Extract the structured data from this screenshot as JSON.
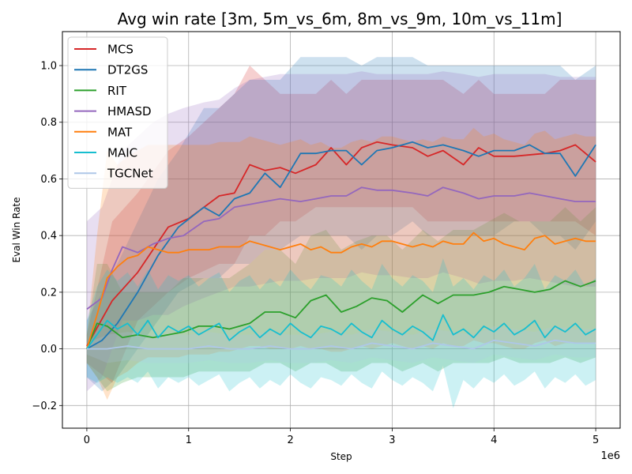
{
  "chart_data": {
    "type": "line",
    "title": "Avg win rate [3m, 5m_vs_6m, 8m_vs_9m, 10m_vs_11m]",
    "xlabel": "Step",
    "ylabel": "Eval Win Rate",
    "x_offset_label": "1e6",
    "xlim": [
      -240000,
      5240000
    ],
    "ylim": [
      -0.28,
      1.12
    ],
    "x_ticks": [
      0,
      1000000,
      2000000,
      3000000,
      4000000,
      5000000
    ],
    "x_tick_labels": [
      "0",
      "1",
      "2",
      "3",
      "4",
      "5"
    ],
    "y_ticks": [
      -0.2,
      0.0,
      0.2,
      0.4,
      0.6,
      0.8,
      1.0
    ],
    "y_tick_labels": [
      "−0.2",
      "0.0",
      "0.2",
      "0.4",
      "0.6",
      "0.8",
      "1.0"
    ],
    "grid": true,
    "legend_position": "top-left",
    "series": [
      {
        "name": "MCS",
        "color": "#d62728",
        "x": [
          0,
          250000,
          500000,
          800000,
          1000000,
          1300000,
          1450000,
          1600000,
          1750000,
          1900000,
          2050000,
          2250000,
          2400000,
          2550000,
          2700000,
          2850000,
          3000000,
          3200000,
          3350000,
          3500000,
          3700000,
          3850000,
          4000000,
          4200000,
          4500000,
          4650000,
          4800000,
          5000000
        ],
        "y": [
          0.01,
          0.17,
          0.27,
          0.43,
          0.46,
          0.54,
          0.55,
          0.65,
          0.63,
          0.64,
          0.62,
          0.65,
          0.71,
          0.65,
          0.71,
          0.73,
          0.72,
          0.71,
          0.68,
          0.7,
          0.65,
          0.71,
          0.68,
          0.68,
          0.69,
          0.7,
          0.72,
          0.66
        ],
        "band_lower": [
          -0.05,
          -0.12,
          0.1,
          0.2,
          0.25,
          0.3,
          0.3,
          0.4,
          0.4,
          0.45,
          0.45,
          0.5,
          0.5,
          0.5,
          0.5,
          0.5,
          0.5,
          0.5,
          0.45,
          0.45,
          0.45,
          0.45,
          0.45,
          0.45,
          0.45,
          0.45,
          0.45,
          0.4
        ],
        "band_upper": [
          0.05,
          0.45,
          0.55,
          0.7,
          0.75,
          0.85,
          0.9,
          1.0,
          0.95,
          0.9,
          0.9,
          0.9,
          0.95,
          0.9,
          0.95,
          0.95,
          0.95,
          0.95,
          0.95,
          0.95,
          0.9,
          0.95,
          0.9,
          0.9,
          0.9,
          0.95,
          0.95,
          0.95
        ]
      },
      {
        "name": "DT2GS",
        "color": "#1f77b4",
        "x": [
          0,
          150000,
          300000,
          500000,
          700000,
          900000,
          1150000,
          1300000,
          1450000,
          1600000,
          1750000,
          1900000,
          2100000,
          2250000,
          2400000,
          2550000,
          2700000,
          2850000,
          3000000,
          3200000,
          3350000,
          3500000,
          3700000,
          3850000,
          4000000,
          4200000,
          4350000,
          4500000,
          4650000,
          4800000,
          5000000
        ],
        "y": [
          0.0,
          0.03,
          0.09,
          0.2,
          0.33,
          0.43,
          0.5,
          0.47,
          0.53,
          0.55,
          0.62,
          0.57,
          0.69,
          0.69,
          0.7,
          0.7,
          0.65,
          0.7,
          0.71,
          0.73,
          0.71,
          0.72,
          0.7,
          0.68,
          0.7,
          0.7,
          0.72,
          0.69,
          0.69,
          0.61,
          0.72
        ],
        "band_lower": [
          -0.1,
          -0.15,
          -0.1,
          0.0,
          0.1,
          0.2,
          0.25,
          0.25,
          0.3,
          0.3,
          0.35,
          0.35,
          0.4,
          0.4,
          0.4,
          0.4,
          0.35,
          0.4,
          0.4,
          0.45,
          0.4,
          0.4,
          0.4,
          0.4,
          0.4,
          0.45,
          0.45,
          0.4,
          0.4,
          0.35,
          0.45
        ],
        "band_upper": [
          0.1,
          0.2,
          0.3,
          0.45,
          0.6,
          0.7,
          0.85,
          0.85,
          0.9,
          0.95,
          0.95,
          0.95,
          1.03,
          1.03,
          1.03,
          1.03,
          1.0,
          1.03,
          1.03,
          1.03,
          1.0,
          1.0,
          1.0,
          1.0,
          1.0,
          1.0,
          1.0,
          1.0,
          1.0,
          0.95,
          1.0
        ]
      },
      {
        "name": "RIT",
        "color": "#2ca02c",
        "x": [
          0,
          100000,
          200000,
          350000,
          500000,
          650000,
          800000,
          950000,
          1100000,
          1250000,
          1400000,
          1600000,
          1750000,
          1900000,
          2050000,
          2200000,
          2350000,
          2500000,
          2650000,
          2800000,
          2950000,
          3100000,
          3300000,
          3450000,
          3600000,
          3800000,
          3950000,
          4100000,
          4250000,
          4400000,
          4550000,
          4700000,
          4850000,
          5000000
        ],
        "y": [
          0.0,
          0.09,
          0.08,
          0.04,
          0.05,
          0.04,
          0.05,
          0.06,
          0.08,
          0.08,
          0.07,
          0.09,
          0.13,
          0.13,
          0.11,
          0.17,
          0.19,
          0.13,
          0.15,
          0.18,
          0.17,
          0.13,
          0.19,
          0.16,
          0.19,
          0.19,
          0.2,
          0.22,
          0.21,
          0.2,
          0.21,
          0.24,
          0.22,
          0.24
        ],
        "band_lower": [
          -0.05,
          -0.1,
          -0.15,
          -0.12,
          -0.1,
          -0.1,
          -0.1,
          -0.1,
          -0.08,
          -0.08,
          -0.08,
          -0.08,
          -0.05,
          -0.05,
          -0.08,
          -0.05,
          -0.05,
          -0.08,
          -0.08,
          -0.05,
          -0.05,
          -0.08,
          -0.05,
          -0.08,
          -0.05,
          -0.05,
          -0.05,
          -0.03,
          -0.05,
          -0.05,
          -0.05,
          -0.03,
          -0.05,
          -0.03
        ],
        "band_upper": [
          0.05,
          0.3,
          0.3,
          0.2,
          0.2,
          0.2,
          0.2,
          0.25,
          0.25,
          0.25,
          0.25,
          0.3,
          0.35,
          0.35,
          0.3,
          0.4,
          0.42,
          0.35,
          0.38,
          0.4,
          0.4,
          0.35,
          0.42,
          0.38,
          0.42,
          0.42,
          0.45,
          0.48,
          0.45,
          0.45,
          0.45,
          0.5,
          0.45,
          0.5
        ]
      },
      {
        "name": "HMASD",
        "color": "#9467bd",
        "x": [
          0,
          150000,
          250000,
          350000,
          500000,
          650000,
          800000,
          950000,
          1150000,
          1300000,
          1450000,
          1600000,
          1750000,
          1900000,
          2100000,
          2250000,
          2400000,
          2550000,
          2700000,
          2850000,
          3000000,
          3200000,
          3350000,
          3500000,
          3700000,
          3850000,
          4000000,
          4200000,
          4350000,
          4500000,
          4650000,
          4800000,
          5000000
        ],
        "y": [
          0.14,
          0.18,
          0.28,
          0.36,
          0.34,
          0.37,
          0.39,
          0.4,
          0.45,
          0.46,
          0.5,
          0.51,
          0.52,
          0.53,
          0.52,
          0.53,
          0.54,
          0.54,
          0.57,
          0.56,
          0.56,
          0.55,
          0.54,
          0.57,
          0.55,
          0.53,
          0.54,
          0.54,
          0.55,
          0.54,
          0.53,
          0.52,
          0.52
        ],
        "band_lower": [
          -0.15,
          -0.1,
          0.0,
          0.1,
          0.1,
          0.12,
          0.12,
          0.15,
          0.18,
          0.2,
          0.22,
          0.22,
          0.23,
          0.24,
          0.24,
          0.25,
          0.25,
          0.25,
          0.27,
          0.26,
          0.26,
          0.25,
          0.25,
          0.27,
          0.25,
          0.23,
          0.24,
          0.24,
          0.25,
          0.24,
          0.23,
          0.22,
          0.22
        ],
        "band_upper": [
          0.45,
          0.5,
          0.6,
          0.7,
          0.75,
          0.8,
          0.83,
          0.85,
          0.87,
          0.88,
          0.92,
          0.95,
          0.96,
          0.97,
          0.97,
          0.97,
          0.97,
          0.97,
          0.98,
          0.97,
          0.97,
          0.97,
          0.97,
          0.98,
          0.97,
          0.96,
          0.97,
          0.97,
          0.97,
          0.97,
          0.96,
          0.96,
          0.96
        ]
      },
      {
        "name": "MAT",
        "color": "#ff7f0e",
        "x": [
          0,
          100000,
          200000,
          300000,
          400000,
          500000,
          600000,
          700000,
          800000,
          900000,
          1000000,
          1100000,
          1200000,
          1300000,
          1400000,
          1500000,
          1600000,
          1700000,
          1800000,
          1900000,
          2000000,
          2100000,
          2200000,
          2300000,
          2400000,
          2500000,
          2600000,
          2700000,
          2800000,
          2900000,
          3000000,
          3100000,
          3200000,
          3300000,
          3400000,
          3500000,
          3600000,
          3700000,
          3800000,
          3900000,
          4000000,
          4100000,
          4200000,
          4300000,
          4400000,
          4500000,
          4600000,
          4700000,
          4800000,
          4900000,
          5000000
        ],
        "y": [
          0.0,
          0.12,
          0.25,
          0.29,
          0.32,
          0.33,
          0.36,
          0.35,
          0.34,
          0.34,
          0.35,
          0.35,
          0.35,
          0.36,
          0.36,
          0.36,
          0.38,
          0.37,
          0.36,
          0.35,
          0.36,
          0.37,
          0.35,
          0.36,
          0.34,
          0.34,
          0.36,
          0.37,
          0.36,
          0.38,
          0.38,
          0.37,
          0.36,
          0.37,
          0.36,
          0.38,
          0.37,
          0.37,
          0.41,
          0.38,
          0.39,
          0.37,
          0.36,
          0.35,
          0.39,
          0.4,
          0.37,
          0.38,
          0.39,
          0.38,
          0.38
        ],
        "band_lower": [
          -0.05,
          -0.1,
          -0.18,
          -0.1,
          -0.08,
          -0.05,
          -0.03,
          -0.03,
          -0.03,
          -0.03,
          -0.02,
          -0.02,
          -0.02,
          -0.01,
          -0.01,
          0.0,
          0.01,
          0.01,
          0.0,
          0.0,
          0.0,
          0.01,
          0.0,
          0.0,
          -0.01,
          -0.01,
          0.0,
          0.01,
          0.0,
          0.01,
          0.02,
          0.01,
          0.0,
          0.01,
          0.0,
          0.02,
          0.01,
          0.01,
          0.03,
          0.02,
          0.02,
          0.01,
          0.0,
          0.0,
          0.02,
          0.03,
          0.01,
          0.02,
          0.02,
          0.02,
          0.02
        ],
        "band_upper": [
          0.05,
          0.4,
          0.7,
          0.65,
          0.68,
          0.7,
          0.72,
          0.72,
          0.72,
          0.72,
          0.72,
          0.72,
          0.72,
          0.73,
          0.73,
          0.73,
          0.75,
          0.74,
          0.73,
          0.72,
          0.73,
          0.74,
          0.72,
          0.73,
          0.71,
          0.71,
          0.73,
          0.74,
          0.73,
          0.75,
          0.75,
          0.74,
          0.73,
          0.74,
          0.73,
          0.75,
          0.74,
          0.74,
          0.78,
          0.75,
          0.76,
          0.74,
          0.73,
          0.72,
          0.76,
          0.77,
          0.74,
          0.75,
          0.76,
          0.75,
          0.75
        ]
      },
      {
        "name": "MAIC",
        "color": "#17becf",
        "x": [
          0,
          100000,
          200000,
          300000,
          400000,
          500000,
          600000,
          700000,
          800000,
          900000,
          1000000,
          1100000,
          1200000,
          1300000,
          1400000,
          1500000,
          1600000,
          1700000,
          1800000,
          1900000,
          2000000,
          2100000,
          2200000,
          2300000,
          2400000,
          2500000,
          2600000,
          2700000,
          2800000,
          2900000,
          3000000,
          3100000,
          3200000,
          3300000,
          3400000,
          3500000,
          3600000,
          3700000,
          3800000,
          3900000,
          4000000,
          4100000,
          4200000,
          4300000,
          4400000,
          4500000,
          4600000,
          4700000,
          4800000,
          4900000,
          5000000
        ],
        "y": [
          0.0,
          0.05,
          0.1,
          0.07,
          0.09,
          0.05,
          0.1,
          0.04,
          0.08,
          0.06,
          0.08,
          0.05,
          0.07,
          0.09,
          0.03,
          0.06,
          0.08,
          0.04,
          0.07,
          0.05,
          0.09,
          0.06,
          0.04,
          0.08,
          0.07,
          0.05,
          0.09,
          0.06,
          0.04,
          0.1,
          0.07,
          0.05,
          0.08,
          0.06,
          0.03,
          0.12,
          0.05,
          0.07,
          0.04,
          0.08,
          0.06,
          0.09,
          0.05,
          0.07,
          0.1,
          0.04,
          0.08,
          0.06,
          0.09,
          0.05,
          0.07
        ],
        "band_lower": [
          -0.1,
          -0.12,
          -0.1,
          -0.12,
          -0.1,
          -0.12,
          -0.08,
          -0.14,
          -0.1,
          -0.12,
          -0.1,
          -0.13,
          -0.11,
          -0.09,
          -0.15,
          -0.12,
          -0.1,
          -0.14,
          -0.11,
          -0.13,
          -0.09,
          -0.12,
          -0.14,
          -0.1,
          -0.11,
          -0.13,
          -0.09,
          -0.12,
          -0.14,
          -0.08,
          -0.11,
          -0.13,
          -0.1,
          -0.12,
          -0.15,
          -0.06,
          -0.21,
          -0.11,
          -0.14,
          -0.1,
          -0.12,
          -0.09,
          -0.13,
          -0.11,
          -0.08,
          -0.14,
          -0.1,
          -0.12,
          -0.09,
          -0.13,
          -0.11
        ],
        "band_upper": [
          0.1,
          0.22,
          0.28,
          0.24,
          0.27,
          0.22,
          0.28,
          0.21,
          0.26,
          0.24,
          0.26,
          0.22,
          0.25,
          0.27,
          0.2,
          0.24,
          0.26,
          0.21,
          0.25,
          0.22,
          0.28,
          0.24,
          0.21,
          0.26,
          0.25,
          0.22,
          0.28,
          0.24,
          0.21,
          0.3,
          0.25,
          0.22,
          0.26,
          0.24,
          0.2,
          0.32,
          0.22,
          0.25,
          0.21,
          0.26,
          0.24,
          0.28,
          0.22,
          0.25,
          0.3,
          0.21,
          0.26,
          0.24,
          0.28,
          0.22,
          0.25
        ]
      },
      {
        "name": "TGCNet",
        "color": "#aec7e8",
        "x": [
          0,
          200000,
          400000,
          600000,
          800000,
          1000000,
          1200000,
          1400000,
          1600000,
          1800000,
          2000000,
          2200000,
          2400000,
          2600000,
          2800000,
          3000000,
          3200000,
          3400000,
          3600000,
          3800000,
          4000000,
          4200000,
          4400000,
          4600000,
          4800000,
          5000000
        ],
        "y": [
          0.0,
          0.0,
          0.01,
          0.0,
          0.0,
          0.0,
          0.01,
          0.0,
          0.0,
          0.01,
          0.0,
          0.0,
          0.01,
          0.0,
          0.02,
          0.01,
          0.0,
          0.02,
          0.01,
          0.0,
          0.03,
          0.02,
          0.01,
          0.03,
          0.02,
          0.02
        ],
        "band_lower": [
          -0.02,
          -0.05,
          -0.04,
          -0.05,
          -0.05,
          -0.05,
          -0.04,
          -0.05,
          -0.05,
          -0.04,
          -0.05,
          -0.05,
          -0.04,
          -0.05,
          -0.03,
          -0.04,
          -0.05,
          -0.03,
          -0.04,
          -0.05,
          -0.02,
          -0.03,
          -0.04,
          -0.02,
          -0.03,
          -0.03
        ],
        "band_upper": [
          0.02,
          0.05,
          0.06,
          0.05,
          0.05,
          0.05,
          0.06,
          0.05,
          0.05,
          0.06,
          0.05,
          0.05,
          0.06,
          0.05,
          0.07,
          0.06,
          0.05,
          0.07,
          0.06,
          0.05,
          0.08,
          0.07,
          0.06,
          0.08,
          0.07,
          0.07
        ]
      }
    ]
  }
}
